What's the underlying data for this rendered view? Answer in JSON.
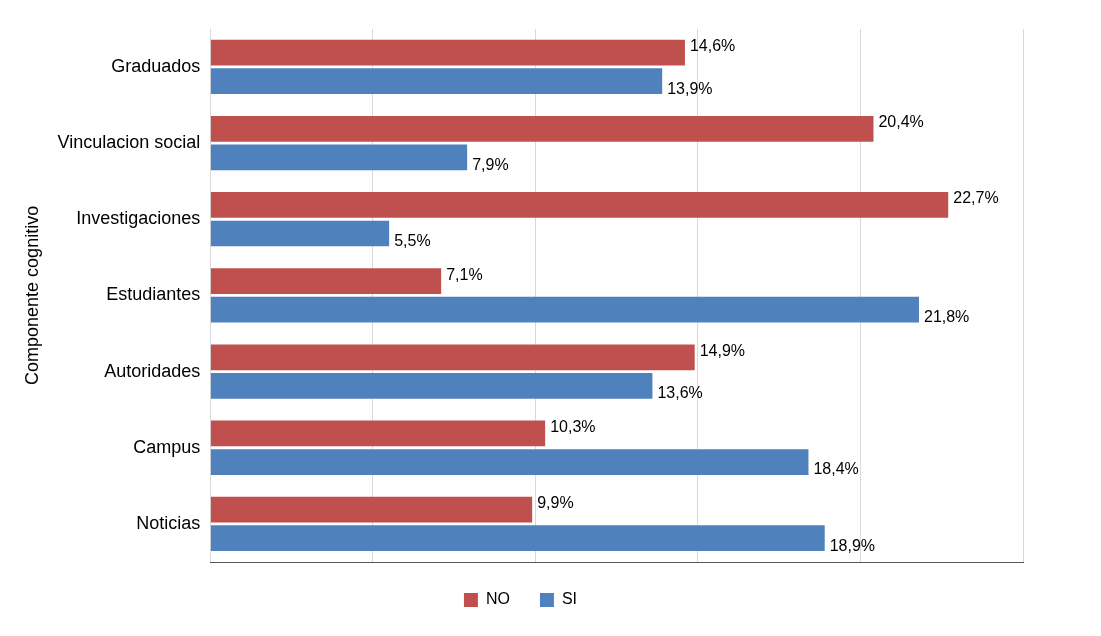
{
  "chart_data": {
    "type": "bar",
    "orientation": "horizontal",
    "ylabel": "Componente cognitivo",
    "categories": [
      "Graduados",
      "Vinculacion social",
      "Investigaciones",
      "Estudiantes",
      "Autoridades",
      "Campus",
      "Noticias"
    ],
    "series": [
      {
        "name": "NO",
        "color": "#c0504d",
        "values": [
          14.6,
          20.4,
          22.7,
          7.1,
          14.9,
          10.3,
          9.9
        ],
        "value_labels": [
          "14,6%",
          "20,4%",
          "22,7%",
          "7,1%",
          "14,9%",
          "10,3%",
          "9,9%"
        ]
      },
      {
        "name": "SI",
        "color": "#4f81bd",
        "values": [
          13.9,
          7.9,
          5.5,
          21.8,
          13.6,
          18.4,
          18.9
        ],
        "value_labels": [
          "13,9%",
          "7,9%",
          "5,5%",
          "21,8%",
          "13,6%",
          "18,4%",
          "18,9%"
        ]
      }
    ],
    "xlim": [
      0,
      25
    ],
    "xticks": [
      {
        "value": 0,
        "label": null
      },
      {
        "value": 5,
        "label": null
      },
      {
        "value": 10,
        "label": null
      },
      {
        "value": 15,
        "label": null
      },
      {
        "value": 20,
        "label": null
      },
      {
        "value": 25,
        "label": null
      }
    ],
    "tick_labels": "y",
    "grid": "x",
    "legend": "bottom"
  }
}
